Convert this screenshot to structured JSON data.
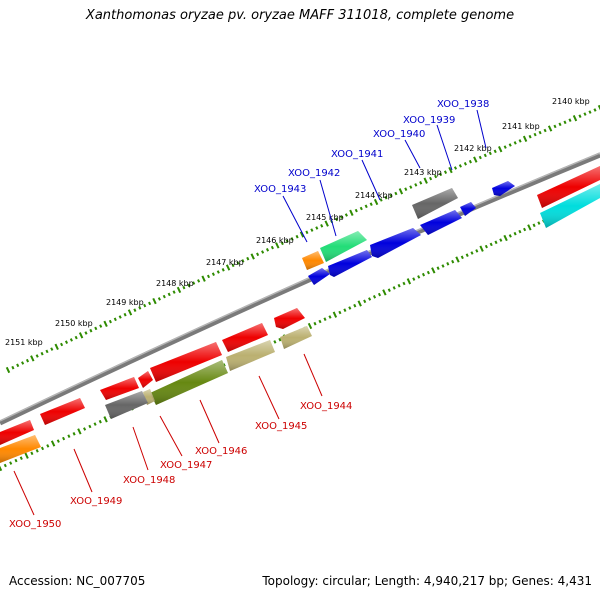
{
  "title": "Xanthomonas oryzae pv. oryzae MAFF 311018, complete genome",
  "accession": "Accession: NC_007705",
  "summary": "Topology: circular; Length: 4,940,217 bp; Genes: 4,431",
  "colors": {
    "backbone": "#8a8a8a",
    "scale_dots": "#2e8b00",
    "label_forward": "#0000cc",
    "label_reverse": "#cc0000"
  },
  "scale_ticks": [
    {
      "label": "2140 kbp"
    },
    {
      "label": "2141 kbp"
    },
    {
      "label": "2142 kbp"
    },
    {
      "label": "2143 kbp"
    },
    {
      "label": "2144 kbp"
    },
    {
      "label": "2145 kbp"
    },
    {
      "label": "2146 kbp"
    },
    {
      "label": "2147 kbp"
    },
    {
      "label": "2148 kbp"
    },
    {
      "label": "2149 kbp"
    },
    {
      "label": "2150 kbp"
    },
    {
      "label": "2151 kbp"
    }
  ],
  "gene_labels": [
    {
      "label": "XOO_1938",
      "strand": "forward"
    },
    {
      "label": "XOO_1939",
      "strand": "forward"
    },
    {
      "label": "XOO_1940",
      "strand": "forward"
    },
    {
      "label": "XOO_1941",
      "strand": "forward"
    },
    {
      "label": "XOO_1942",
      "strand": "forward"
    },
    {
      "label": "XOO_1943",
      "strand": "forward"
    },
    {
      "label": "XOO_1944",
      "strand": "reverse"
    },
    {
      "label": "XOO_1945",
      "strand": "reverse"
    },
    {
      "label": "XOO_1946",
      "strand": "reverse"
    },
    {
      "label": "XOO_1947",
      "strand": "reverse"
    },
    {
      "label": "XOO_1948",
      "strand": "reverse"
    },
    {
      "label": "XOO_1949",
      "strand": "reverse"
    },
    {
      "label": "XOO_1950",
      "strand": "reverse"
    }
  ],
  "gene_colors": {
    "red": "#ee0000",
    "blue": "#0000dd",
    "gray": "#666666",
    "green": "#22dd77",
    "orange": "#ff8800",
    "olive": "#668811",
    "khaki": "#bbb070",
    "cyan": "#00dddd"
  }
}
